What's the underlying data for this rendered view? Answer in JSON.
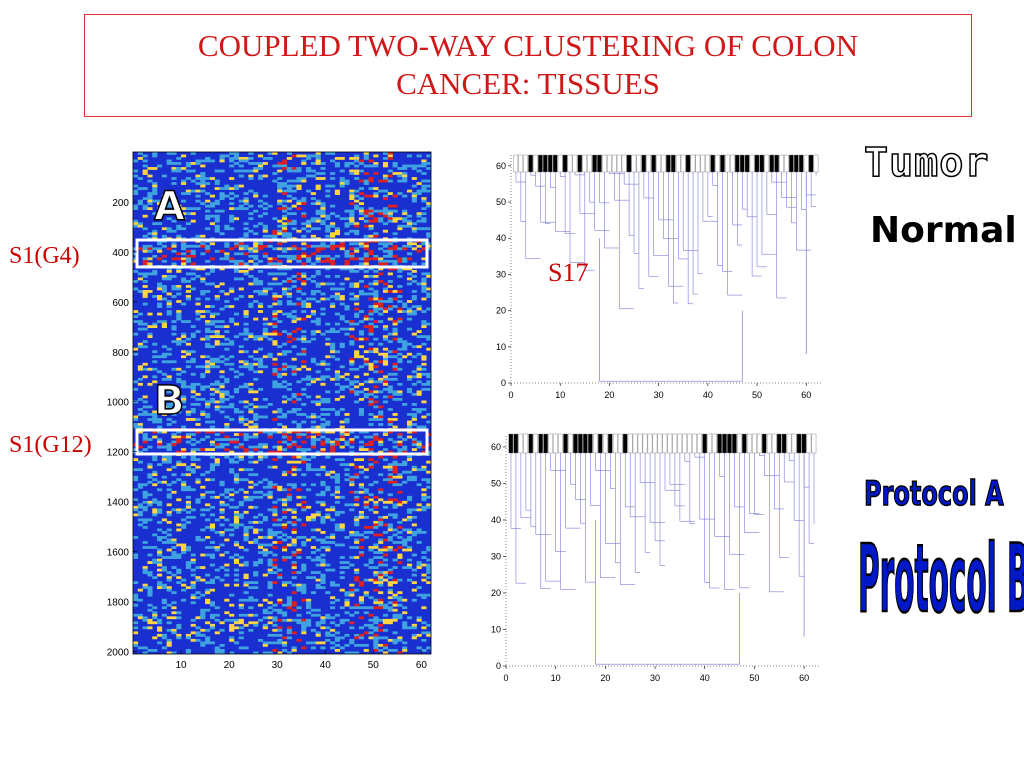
{
  "title": {
    "line1": "COUPLED TWO-WAY CLUSTERING OF COLON",
    "line2": "CANCER: TISSUES"
  },
  "heatmap": {
    "y_ticks": [
      "200",
      "400",
      "600",
      "800",
      "1000",
      "1200",
      "1400",
      "1600",
      "1800",
      "2000"
    ],
    "x_ticks": [
      "10",
      "20",
      "30",
      "40",
      "50",
      "60"
    ],
    "label_a": "A",
    "label_b": "B",
    "band_label_1": "S1(G4)",
    "band_label_2": "S1(G12)",
    "colors": {
      "low": "#1a2fd0",
      "mid": "#3fa3e0",
      "high": "#ffd640",
      "peak": "#e02020"
    }
  },
  "dendrogram_top": {
    "annotation": "S17",
    "y_ticks": [
      "0",
      "10",
      "20",
      "30",
      "40",
      "50",
      "60"
    ],
    "x_ticks": [
      "0",
      "10",
      "20",
      "30",
      "40",
      "50",
      "60"
    ]
  },
  "dendrogram_bottom": {
    "y_ticks": [
      "0",
      "10",
      "20",
      "30",
      "40",
      "50",
      "60"
    ],
    "x_ticks": [
      "0",
      "10",
      "20",
      "30",
      "40",
      "50",
      "60"
    ]
  },
  "legend": {
    "tumor": "Tumor",
    "normal": "Normal",
    "protocol_a": "Protocol A",
    "protocol_b": "Protocol B"
  }
}
